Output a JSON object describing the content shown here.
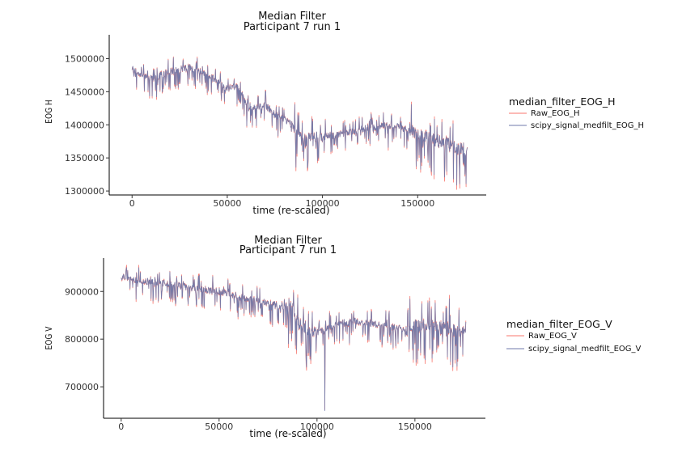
{
  "chart_data": [
    {
      "type": "line",
      "title": "Median Filter",
      "subtitle": "Participant 7 run 1",
      "xlabel": "time (re-scaled)",
      "ylabel": "EOG H",
      "xlim": [
        -12000,
        186000
      ],
      "ylim": [
        1294000,
        1536000
      ],
      "x_ticks": [
        0,
        50000,
        100000,
        150000
      ],
      "x_tick_labels": [
        "0",
        "50000",
        "100000",
        "150000"
      ],
      "y_ticks": [
        1300000,
        1350000,
        1400000,
        1450000,
        1500000
      ],
      "y_tick_labels": [
        "1300000",
        "1350000",
        "1400000",
        "1450000",
        "1500000"
      ],
      "grid": false,
      "legend": {
        "title": "median_filter_EOG_H",
        "placement": "right",
        "entries": [
          "Raw_EOG_H",
          "scipy_signal_medfilt_EOG_H"
        ]
      },
      "colors": {
        "raw": "#f8766d",
        "filtered": "#6f7aab"
      },
      "baseline": {
        "x": [
          0,
          5000,
          10000,
          20000,
          30000,
          40000,
          45000,
          50000,
          55000,
          58000,
          60000,
          65000,
          70000,
          75000,
          80000,
          85000,
          88000,
          90000,
          95000,
          100000,
          110000,
          120000,
          130000,
          140000,
          145000,
          150000,
          155000,
          160000,
          165000,
          170000,
          176000
        ],
        "y": [
          1485000,
          1475000,
          1470000,
          1480000,
          1487000,
          1475000,
          1465000,
          1455000,
          1458000,
          1445000,
          1430000,
          1425000,
          1430000,
          1415000,
          1408000,
          1398000,
          1382000,
          1375000,
          1380000,
          1382000,
          1386000,
          1393000,
          1398000,
          1398000,
          1392000,
          1385000,
          1382000,
          1375000,
          1372000,
          1365000,
          1360000
        ]
      },
      "series": [
        {
          "name": "Raw_EOG_H",
          "x_range": [
            0,
            176000
          ],
          "y_range": [
            1300000,
            1522000
          ]
        },
        {
          "name": "scipy_signal_medfilt_EOG_H",
          "x_range": [
            0,
            176000
          ],
          "y_range": [
            1303000,
            1518000
          ]
        }
      ]
    },
    {
      "type": "line",
      "title": "Median Filter",
      "subtitle": "Participant 7 run 1",
      "xlabel": "time (re-scaled)",
      "ylabel": "EOG V",
      "xlim": [
        -9000,
        186000
      ],
      "ylim": [
        634000,
        970000
      ],
      "x_ticks": [
        0,
        50000,
        100000,
        150000
      ],
      "x_tick_labels": [
        "0",
        "50000",
        "100000",
        "150000"
      ],
      "y_ticks": [
        700000,
        800000,
        900000
      ],
      "y_tick_labels": [
        "700000",
        "800000",
        "900000"
      ],
      "grid": false,
      "legend": {
        "title": "median_filter_EOG_V",
        "placement": "right",
        "entries": [
          "Raw_EOG_V",
          "scipy_signal_medfilt_EOG_V"
        ]
      },
      "colors": {
        "raw": "#f8766d",
        "filtered": "#6f7aab"
      },
      "baseline": {
        "x": [
          0,
          5000,
          10000,
          20000,
          30000,
          40000,
          50000,
          60000,
          70000,
          80000,
          85000,
          88000,
          90000,
          95000,
          100000,
          105000,
          110000,
          120000,
          130000,
          140000,
          145000,
          150000,
          160000,
          170000,
          176000
        ],
        "y": [
          930000,
          928000,
          922000,
          918000,
          912000,
          905000,
          900000,
          890000,
          880000,
          870000,
          868000,
          862000,
          835000,
          818000,
          812000,
          820000,
          832000,
          837000,
          832000,
          825000,
          818000,
          830000,
          825000,
          818000,
          815000
        ]
      },
      "series": [
        {
          "name": "Raw_EOG_V",
          "x_range": [
            0,
            176000
          ],
          "y_range": [
            650000,
            955000
          ]
        },
        {
          "name": "scipy_signal_medfilt_EOG_V",
          "x_range": [
            0,
            176000
          ],
          "y_range": [
            650000,
            950000
          ]
        }
      ]
    }
  ]
}
